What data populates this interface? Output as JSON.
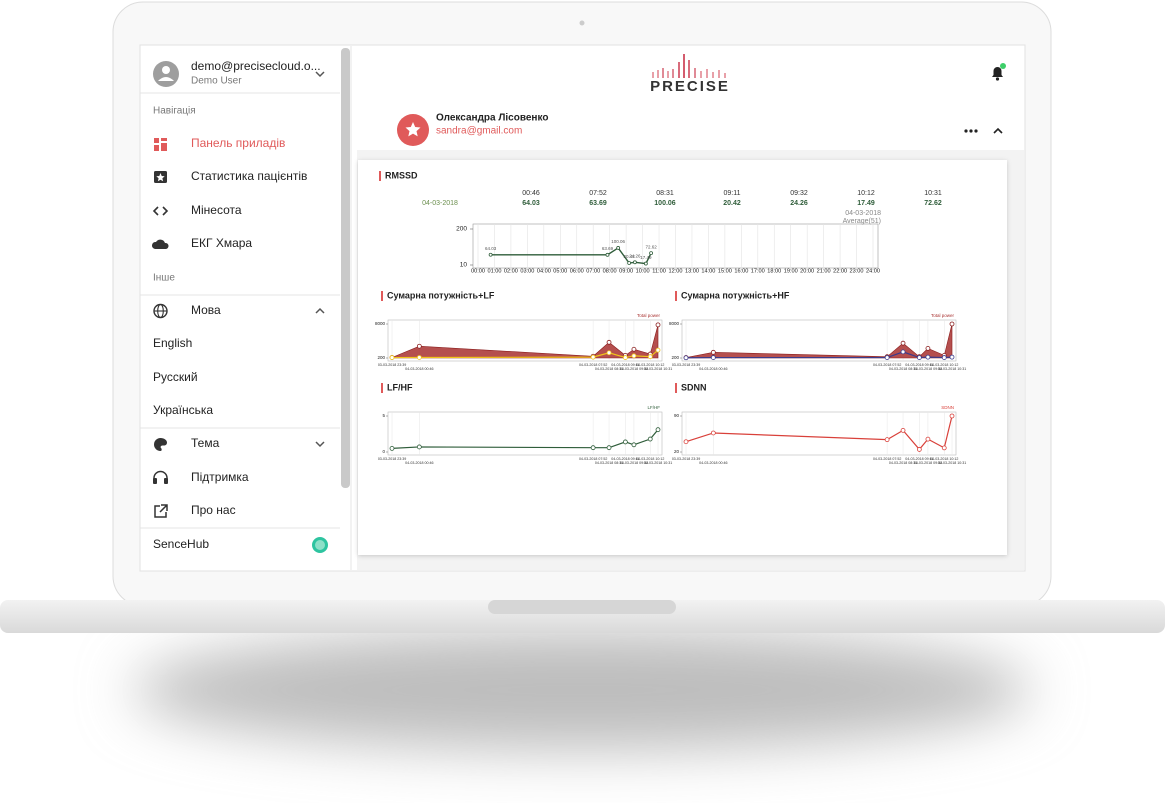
{
  "account": {
    "email": "demo@precisecloud.o...",
    "name": "Demo User"
  },
  "navigation": {
    "heading": "Навігація",
    "items": [
      "Панель приладів",
      "Статистика пацієнтів",
      "Мінесота",
      "ЕКГ Хмара"
    ]
  },
  "other": {
    "heading": "Інше",
    "language": {
      "label": "Мова",
      "options": [
        "English",
        "Русский",
        "Українська"
      ]
    },
    "items": [
      "Тема",
      "Підтримка",
      "Про нас"
    ]
  },
  "footer": {
    "label": "SenceHub"
  },
  "header": {
    "logo": "PRECISE"
  },
  "patient": {
    "name": "Олександра Лісовенко",
    "email": "sandra@gmail.com"
  },
  "chart_data": [
    {
      "type": "line",
      "title": "RMSSD",
      "date": "04-03-2018",
      "annotations": [
        "04-03-2018",
        "Average(51)"
      ],
      "x": [
        "00:46",
        "07:52",
        "08:31",
        "09:11",
        "09:32",
        "10:12",
        "10:31"
      ],
      "series": [
        {
          "color": "#2f5d3a",
          "values": [
            64.03,
            63.69,
            100.06,
            20.42,
            24.26,
            17.49,
            72.62
          ]
        }
      ],
      "ylim": [
        10,
        200
      ],
      "yticks": [
        10,
        200
      ],
      "xlim": [
        "00:00",
        "24:00"
      ],
      "xticks": [
        "00:00",
        "01:00",
        "02:00",
        "03:00",
        "04:00",
        "05:00",
        "06:00",
        "07:00",
        "08:00",
        "09:00",
        "10:00",
        "11:00",
        "12:00",
        "13:00",
        "14:00",
        "15:00",
        "16:00",
        "17:00",
        "18:00",
        "19:00",
        "20:00",
        "21:00",
        "22:00",
        "23:00",
        "24:00"
      ]
    },
    {
      "type": "area",
      "title": "Сумарна потужність+LF",
      "x": [
        "03-03-2018 23:39",
        "04-03-2018 00:46",
        "04-03-2018 07:52",
        "04-03-2018 08:31",
        "04-03-2018 09:11",
        "04-03-2018 09:32",
        "04-03-2018 10:12",
        "04-03-2018 10:31"
      ],
      "series": [
        {
          "name": "Total power",
          "color": "#a8302f",
          "values": [
            320,
            2900,
            600,
            3800,
            800,
            2200,
            1100,
            7800
          ]
        },
        {
          "color": "#f0c419",
          "values": [
            300,
            320,
            400,
            1400,
            300,
            700,
            500,
            2000
          ]
        }
      ],
      "ylim": [
        200,
        8000
      ],
      "yticks": [
        200,
        8000
      ]
    },
    {
      "type": "area",
      "title": "Сумарна потужність+HF",
      "x": [
        "03-03-2018 23:39",
        "04-03-2018 00:46",
        "04-03-2018 07:52",
        "04-03-2018 08:31",
        "04-03-2018 09:11",
        "04-03-2018 09:32",
        "04-03-2018 10:12",
        "04-03-2018 10:31"
      ],
      "series": [
        {
          "name": "Total power",
          "color": "#a8302f",
          "values": [
            300,
            1500,
            500,
            3600,
            500,
            2400,
            800,
            8000
          ]
        },
        {
          "color": "#3c3c8c",
          "values": [
            250,
            300,
            300,
            1600,
            300,
            400,
            300,
            400
          ]
        }
      ],
      "ylim": [
        200,
        8000
      ],
      "yticks": [
        200,
        8000
      ]
    },
    {
      "type": "line",
      "title": "LF/HF",
      "x": [
        "03-03-2018 23:39",
        "04-03-2018 00:46",
        "04-03-2018 07:52",
        "04-03-2018 08:31",
        "04-03-2018 09:11",
        "04-03-2018 09:32",
        "04-03-2018 10:12",
        "04-03-2018 10:31"
      ],
      "series": [
        {
          "name": "LF/HF",
          "color": "#2f5d3a",
          "values": [
            0.5,
            0.7,
            0.6,
            0.6,
            1.4,
            1.0,
            1.8,
            3.1
          ]
        }
      ],
      "ylim": [
        0,
        5
      ],
      "yticks": [
        0,
        5
      ]
    },
    {
      "type": "line",
      "title": "SDNN",
      "x": [
        "03-03-2018 23:39",
        "04-03-2018 00:46",
        "04-03-2018 07:52",
        "04-03-2018 08:31",
        "04-03-2018 09:11",
        "04-03-2018 09:32",
        "04-03-2018 10:12",
        "04-03-2018 10:31"
      ],
      "series": [
        {
          "name": "SDNN",
          "color": "#d9403a",
          "values": [
            40,
            57,
            44,
            62,
            25,
            45,
            28,
            90
          ]
        }
      ],
      "ylim": [
        20,
        90
      ],
      "yticks": [
        20,
        90
      ]
    }
  ]
}
